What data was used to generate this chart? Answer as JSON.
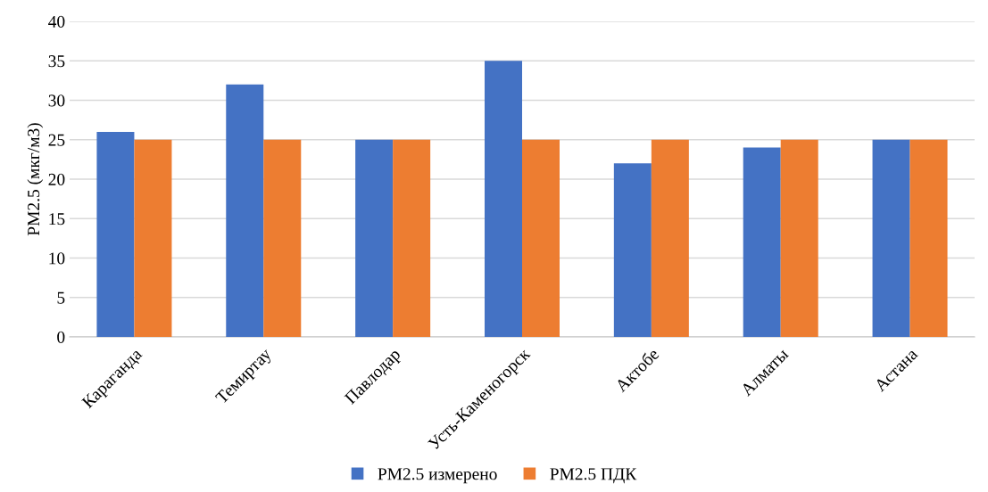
{
  "chart_data": {
    "type": "bar",
    "ylabel": "PM2.5 (мкг/м3)",
    "categories": [
      "Караганда",
      "Темиртау",
      "Павлодар",
      "Усть-Каменогорск",
      "Актобе",
      "Алматы",
      "Астана"
    ],
    "series": [
      {
        "name": "PM2.5 измерено",
        "color": "#4472c4",
        "values": [
          26,
          32,
          25,
          35,
          22,
          24,
          25
        ]
      },
      {
        "name": "PM2.5 ПДК",
        "color": "#ed7d31",
        "values": [
          25,
          25,
          25,
          25,
          25,
          25,
          25
        ]
      }
    ],
    "ylim": [
      0,
      40
    ],
    "yticks": [
      0,
      5,
      10,
      15,
      20,
      25,
      30,
      35,
      40
    ],
    "grid": "y",
    "legend": "bottom"
  }
}
